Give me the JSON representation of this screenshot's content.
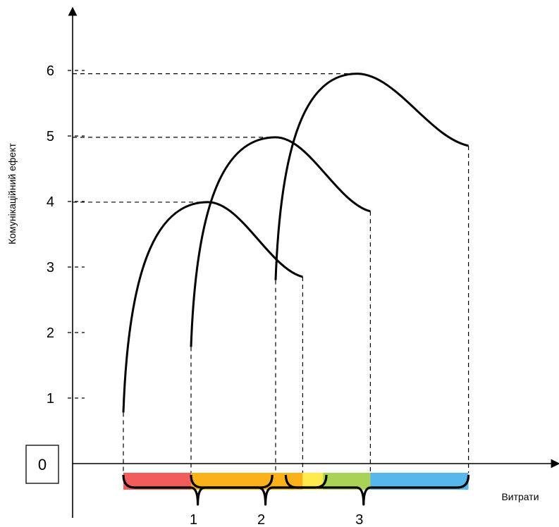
{
  "y_axis_label": "Комунікаційний ефект",
  "x_axis_label": "Витрати",
  "origin_label": "0",
  "y_ticks": [
    "1",
    "2",
    "3",
    "4",
    "5",
    "6"
  ],
  "range_labels": [
    "1",
    "2",
    "3"
  ],
  "curves": [
    {
      "start_x": 1.0,
      "start_y": 0.78,
      "peak_x": 2.25,
      "peak_y": 3.99,
      "end_x": 3.65,
      "end_y": 2.85
    },
    {
      "start_x": 2.0,
      "start_y": 1.78,
      "peak_x": 3.25,
      "peak_y": 4.98,
      "end_x": 4.65,
      "end_y": 3.85
    },
    {
      "start_x": 3.25,
      "start_y": 2.8,
      "peak_x": 4.45,
      "peak_y": 5.95,
      "end_x": 6.1,
      "end_y": 4.85
    }
  ],
  "bands": [
    {
      "from": 1.0,
      "to": 2.0,
      "color": "#f25c5c"
    },
    {
      "from": 2.0,
      "to": 3.65,
      "color": "#fbb21a"
    },
    {
      "from": 3.65,
      "to": 3.95,
      "color": "#ffe94d"
    },
    {
      "from": 3.95,
      "to": 4.65,
      "color": "#a9d357"
    },
    {
      "from": 4.65,
      "to": 6.1,
      "color": "#56b8ea"
    }
  ],
  "braces": [
    {
      "from": 1.0,
      "to": 3.2,
      "label_at": 2.1
    },
    {
      "from": 2.0,
      "to": 4.0,
      "label_at": 3.1
    },
    {
      "from": 3.4,
      "to": 6.1,
      "label_at": 4.55
    }
  ]
}
